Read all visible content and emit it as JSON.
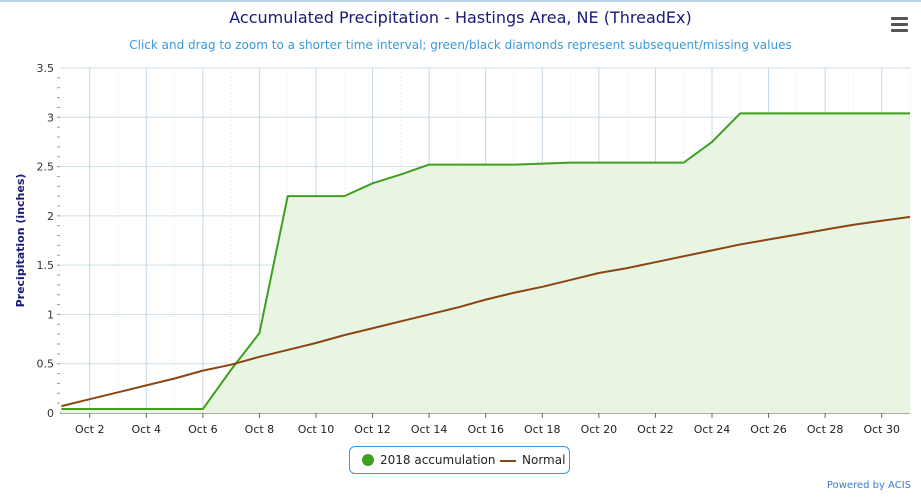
{
  "title": "Accumulated Precipitation - Hastings Area, NE (ThreadEx)",
  "subtitle": "Click and drag to zoom to a shorter time interval; green/black diamonds represent subsequent/missing values",
  "credit": "Powered by ACIS",
  "menu_icon": "hamburger-menu-icon",
  "chart_data": {
    "type": "area",
    "title": "Accumulated Precipitation - Hastings Area, NE (ThreadEx)",
    "ylabel": "Precipitation (inches)",
    "xlabel": "",
    "xlim": [
      1,
      31
    ],
    "ylim": [
      0,
      3.5
    ],
    "y_ticks": [
      "0",
      "0.5",
      "1",
      "1.5",
      "2",
      "2.5",
      "3",
      "3.5"
    ],
    "x_ticks": [
      "Oct 2",
      "Oct 4",
      "Oct 6",
      "Oct 8",
      "Oct 10",
      "Oct 12",
      "Oct 14",
      "Oct 16",
      "Oct 18",
      "Oct 20",
      "Oct 22",
      "Oct 24",
      "Oct 26",
      "Oct 28",
      "Oct 30"
    ],
    "x_tick_days": [
      2,
      4,
      6,
      8,
      10,
      12,
      14,
      16,
      18,
      20,
      22,
      24,
      26,
      28,
      30
    ],
    "grid": true,
    "legend": "bottom-center",
    "series": [
      {
        "name": "2018 accumulation",
        "color": "#3f9f1f",
        "fill": "#e9f5e3",
        "x": [
          1,
          2,
          3,
          4,
          5,
          6,
          7,
          8,
          9,
          10,
          11,
          12,
          13,
          14,
          15,
          16,
          17,
          18,
          19,
          20,
          21,
          22,
          23,
          24,
          25,
          26,
          27,
          28,
          29,
          30,
          31
        ],
        "values": [
          0.04,
          0.04,
          0.04,
          0.04,
          0.04,
          0.04,
          0.44,
          0.81,
          2.2,
          2.2,
          2.2,
          2.33,
          2.42,
          2.52,
          2.52,
          2.52,
          2.52,
          2.53,
          2.54,
          2.54,
          2.54,
          2.54,
          2.54,
          2.75,
          3.04,
          3.04,
          3.04,
          3.04,
          3.04,
          3.04,
          3.04
        ]
      },
      {
        "name": "Normal",
        "color": "#8b4513",
        "x": [
          1,
          2,
          3,
          4,
          5,
          6,
          7,
          8,
          9,
          10,
          11,
          12,
          13,
          14,
          15,
          16,
          17,
          18,
          19,
          20,
          21,
          22,
          23,
          24,
          25,
          26,
          27,
          28,
          29,
          30,
          31
        ],
        "values": [
          0.07,
          0.14,
          0.21,
          0.28,
          0.35,
          0.43,
          0.49,
          0.57,
          0.64,
          0.71,
          0.79,
          0.86,
          0.93,
          1.0,
          1.07,
          1.15,
          1.22,
          1.28,
          1.35,
          1.42,
          1.47,
          1.53,
          1.59,
          1.65,
          1.71,
          1.76,
          1.81,
          1.86,
          1.91,
          1.95,
          1.99
        ]
      }
    ]
  }
}
